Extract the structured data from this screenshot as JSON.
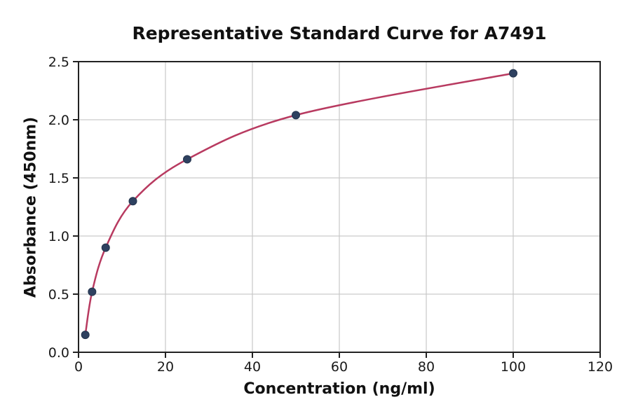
{
  "chart_data": {
    "type": "line",
    "title": "Representative Standard Curve for A7491",
    "xlabel": "Concentration (ng/ml)",
    "ylabel": "Absorbance (450nm)",
    "x": [
      1.56,
      3.12,
      6.25,
      12.5,
      25,
      50,
      100
    ],
    "y": [
      0.15,
      0.52,
      0.9,
      1.3,
      1.66,
      2.04,
      2.4
    ],
    "xlim": [
      0,
      120
    ],
    "ylim": [
      0,
      2.5
    ],
    "xticks": [
      0,
      20,
      40,
      60,
      80,
      100,
      120
    ],
    "xtick_labels": [
      "0",
      "20",
      "40",
      "60",
      "80",
      "100",
      "120"
    ],
    "yticks": [
      0,
      0.5,
      1.0,
      1.5,
      2.0,
      2.5
    ],
    "ytick_labels": [
      "0.0",
      "0.5",
      "1.0",
      "1.5",
      "2.0",
      "2.5"
    ],
    "grid": true,
    "legend": "none",
    "marker": "circle",
    "colors": {
      "line": "#b83a60",
      "marker": "#2e4160",
      "marker_edge": "#24344d",
      "grid": "#c9c9c9",
      "spine": "#222222",
      "text": "#111111",
      "background": "#ffffff"
    }
  }
}
